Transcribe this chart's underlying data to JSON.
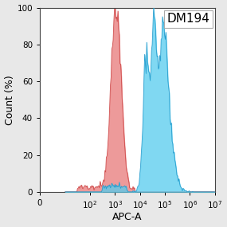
{
  "title_annotation": "DM194",
  "xlabel": "APC-A",
  "ylabel": "Count (%)",
  "ylim": [
    0,
    100
  ],
  "yticks": [
    0,
    20,
    40,
    60,
    80,
    100
  ],
  "background_color": "#e8e8e8",
  "plot_bg_color": "#ffffff",
  "red_fill_color": "#e87878",
  "red_edge_color": "#cc4444",
  "blue_fill_color": "#55ccee",
  "blue_edge_color": "#2299cc",
  "red_alpha": 0.75,
  "blue_alpha": 0.75,
  "annotation_fontsize": 11,
  "axis_label_fontsize": 9,
  "tick_fontsize": 7.5,
  "red_peak_log": 3.05,
  "red_std": 0.2,
  "blue_peak1_log": 4.85,
  "blue_std1": 0.32,
  "blue_peak2_log": 4.25,
  "blue_std2": 0.12,
  "blue_peak3_log": 4.55,
  "blue_std3": 0.09
}
